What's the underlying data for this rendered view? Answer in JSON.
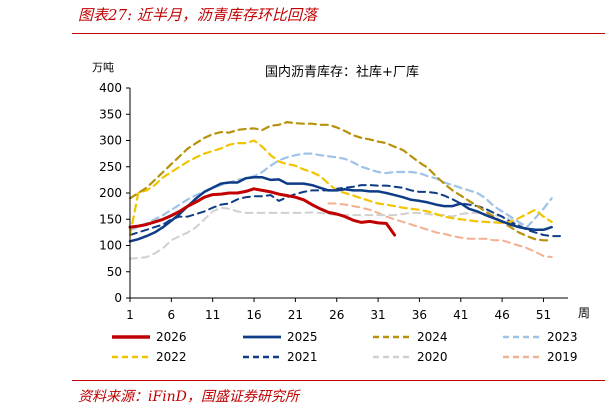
{
  "caption": "图表27: 近半月，沥青库存环比回落",
  "source": "资料来源：iFinD，国盛证券研究所",
  "chart_data": {
    "type": "line",
    "title": "国内沥青库存：社库+厂库",
    "ylabel": "万吨",
    "xlabel": "周",
    "ylim": [
      0,
      400
    ],
    "yticks": [
      0,
      50,
      100,
      150,
      200,
      250,
      300,
      350,
      400
    ],
    "xlim": [
      1,
      53
    ],
    "xticks": [
      1,
      6,
      11,
      16,
      21,
      26,
      31,
      36,
      41,
      46,
      51
    ],
    "legend_position": "bottom",
    "grid": false,
    "series": [
      {
        "name": "2026",
        "color": "#c00000",
        "style": "solid",
        "width": 3,
        "x": [
          1,
          2,
          3,
          4,
          5,
          6,
          7,
          8,
          9,
          10,
          11,
          12,
          13,
          14,
          15,
          16,
          17,
          18,
          19,
          20,
          21,
          22,
          23,
          24,
          25,
          26,
          27,
          28,
          29,
          30,
          31,
          32,
          33
        ],
        "y": [
          135,
          137,
          140,
          145,
          150,
          157,
          165,
          175,
          183,
          192,
          197,
          198,
          200,
          200,
          203,
          208,
          205,
          202,
          198,
          195,
          192,
          187,
          178,
          170,
          163,
          160,
          155,
          148,
          144,
          146,
          143,
          142,
          120
        ]
      },
      {
        "name": "2025",
        "color": "#0e3c86",
        "style": "solid",
        "width": 2.5,
        "x": [
          1,
          2,
          3,
          4,
          5,
          6,
          7,
          8,
          9,
          10,
          11,
          12,
          13,
          14,
          15,
          16,
          17,
          18,
          19,
          20,
          21,
          22,
          23,
          24,
          25,
          26,
          27,
          28,
          29,
          30,
          31,
          32,
          33,
          34,
          35,
          36,
          37,
          38,
          39,
          40,
          41,
          42,
          43,
          44,
          45,
          46,
          47,
          48,
          49,
          50,
          51,
          52
        ],
        "y": [
          108,
          112,
          118,
          125,
          135,
          147,
          160,
          175,
          190,
          202,
          210,
          218,
          220,
          220,
          228,
          230,
          230,
          225,
          226,
          218,
          218,
          218,
          215,
          210,
          205,
          205,
          207,
          205,
          205,
          203,
          203,
          200,
          196,
          192,
          187,
          185,
          182,
          178,
          175,
          175,
          180,
          170,
          165,
          158,
          152,
          146,
          140,
          135,
          132,
          130,
          130,
          135
        ]
      },
      {
        "name": "2024",
        "color": "#b8910a",
        "style": "dash",
        "width": 2.2,
        "x": [
          1,
          2,
          3,
          4,
          5,
          6,
          7,
          8,
          9,
          10,
          11,
          12,
          13,
          14,
          15,
          16,
          17,
          18,
          19,
          20,
          21,
          22,
          23,
          24,
          25,
          26,
          27,
          28,
          29,
          30,
          31,
          32,
          33,
          34,
          35,
          36,
          37,
          38,
          39,
          40,
          41,
          42,
          43,
          44,
          45,
          46,
          47,
          48,
          49,
          50,
          51,
          52
        ],
        "y": [
          190,
          200,
          210,
          225,
          240,
          255,
          270,
          285,
          295,
          305,
          312,
          316,
          315,
          320,
          322,
          323,
          320,
          328,
          330,
          335,
          333,
          332,
          332,
          330,
          330,
          325,
          318,
          310,
          305,
          302,
          298,
          295,
          288,
          282,
          270,
          258,
          248,
          232,
          218,
          205,
          195,
          185,
          175,
          165,
          155,
          145,
          135,
          125,
          118,
          112,
          110,
          110
        ]
      },
      {
        "name": "2023",
        "color": "#9fc3e7",
        "style": "dash",
        "width": 2.2,
        "x": [
          1,
          2,
          3,
          4,
          5,
          6,
          7,
          8,
          9,
          10,
          11,
          12,
          13,
          14,
          15,
          16,
          17,
          18,
          19,
          20,
          21,
          22,
          23,
          24,
          25,
          26,
          27,
          28,
          29,
          30,
          31,
          32,
          33,
          34,
          35,
          36,
          37,
          38,
          39,
          40,
          41,
          42,
          43,
          44,
          45,
          46,
          47,
          48,
          49,
          50,
          51,
          52
        ],
        "y": [
          130,
          135,
          142,
          150,
          158,
          168,
          178,
          188,
          196,
          203,
          210,
          215,
          220,
          225,
          228,
          232,
          240,
          252,
          262,
          268,
          272,
          275,
          275,
          272,
          270,
          268,
          265,
          258,
          250,
          245,
          240,
          238,
          240,
          240,
          240,
          238,
          232,
          228,
          220,
          215,
          210,
          205,
          200,
          190,
          175,
          165,
          155,
          145,
          135,
          152,
          170,
          190
        ]
      },
      {
        "name": "2022",
        "color": "#f2c400",
        "style": "dash",
        "width": 2.2,
        "x": [
          1,
          2,
          3,
          4,
          5,
          6,
          7,
          8,
          9,
          10,
          11,
          12,
          13,
          14,
          15,
          16,
          17,
          18,
          19,
          20,
          21,
          22,
          23,
          24,
          25,
          26,
          27,
          28,
          29,
          30,
          31,
          32,
          33,
          34,
          35,
          36,
          37,
          38,
          39,
          40,
          41,
          42,
          43,
          44,
          45,
          46,
          47,
          48,
          49,
          50,
          51,
          52
        ],
        "y": [
          120,
          200,
          205,
          215,
          230,
          240,
          250,
          260,
          268,
          275,
          280,
          285,
          292,
          295,
          295,
          300,
          288,
          272,
          260,
          255,
          252,
          245,
          240,
          232,
          218,
          205,
          200,
          195,
          190,
          185,
          180,
          178,
          175,
          172,
          170,
          168,
          165,
          160,
          155,
          152,
          150,
          148,
          146,
          145,
          144,
          143,
          145,
          152,
          160,
          168,
          155,
          145
        ]
      },
      {
        "name": "2021",
        "color": "#0e3c86",
        "style": "dash",
        "width": 2.0,
        "x": [
          1,
          2,
          3,
          4,
          5,
          6,
          7,
          8,
          9,
          10,
          11,
          12,
          13,
          14,
          15,
          16,
          17,
          18,
          19,
          20,
          21,
          22,
          23,
          24,
          25,
          26,
          27,
          28,
          29,
          30,
          31,
          32,
          33,
          34,
          35,
          36,
          37,
          38,
          39,
          40,
          41,
          42,
          43,
          44,
          45,
          46,
          47,
          48,
          49,
          50,
          51,
          52,
          53
        ],
        "y": [
          120,
          125,
          130,
          135,
          140,
          150,
          155,
          155,
          160,
          165,
          172,
          178,
          180,
          188,
          192,
          194,
          194,
          196,
          185,
          192,
          198,
          202,
          205,
          205,
          205,
          208,
          210,
          212,
          215,
          215,
          214,
          214,
          212,
          210,
          205,
          202,
          202,
          200,
          195,
          188,
          180,
          178,
          175,
          170,
          162,
          155,
          145,
          138,
          130,
          125,
          120,
          118,
          118
        ]
      },
      {
        "name": "2020",
        "color": "#d0d0d0",
        "style": "dash",
        "width": 2.0,
        "x": [
          1,
          2,
          3,
          4,
          5,
          6,
          7,
          8,
          9,
          10,
          11,
          12,
          13,
          14,
          15,
          16,
          17,
          18,
          19,
          20,
          21,
          22,
          23,
          24,
          25,
          26,
          27,
          28,
          29,
          30,
          31,
          32,
          33,
          34,
          35,
          36,
          37,
          38,
          39,
          40,
          41,
          42,
          43,
          44,
          45,
          46,
          47,
          48,
          49,
          50,
          51,
          52
        ],
        "y": [
          75,
          76,
          78,
          85,
          95,
          110,
          118,
          125,
          135,
          150,
          165,
          172,
          170,
          165,
          162,
          162,
          162,
          162,
          162,
          162,
          162,
          162,
          163,
          162,
          160,
          158,
          158,
          158,
          158,
          158,
          158,
          158,
          158,
          160,
          162,
          162,
          160,
          158,
          158,
          155,
          160,
          162,
          162,
          160,
          158,
          155,
          150,
          140,
          130,
          130,
          130,
          130
        ]
      },
      {
        "name": "2019",
        "color": "#f2b090",
        "style": "dash",
        "width": 2.0,
        "x": [
          25,
          26,
          27,
          28,
          29,
          30,
          31,
          32,
          33,
          34,
          35,
          36,
          37,
          38,
          39,
          40,
          41,
          42,
          43,
          44,
          45,
          46,
          47,
          48,
          49,
          50,
          51,
          52
        ],
        "y": [
          180,
          180,
          178,
          175,
          172,
          168,
          162,
          155,
          150,
          145,
          140,
          135,
          130,
          125,
          122,
          118,
          115,
          113,
          113,
          113,
          110,
          110,
          105,
          100,
          95,
          88,
          80,
          78
        ]
      }
    ]
  }
}
